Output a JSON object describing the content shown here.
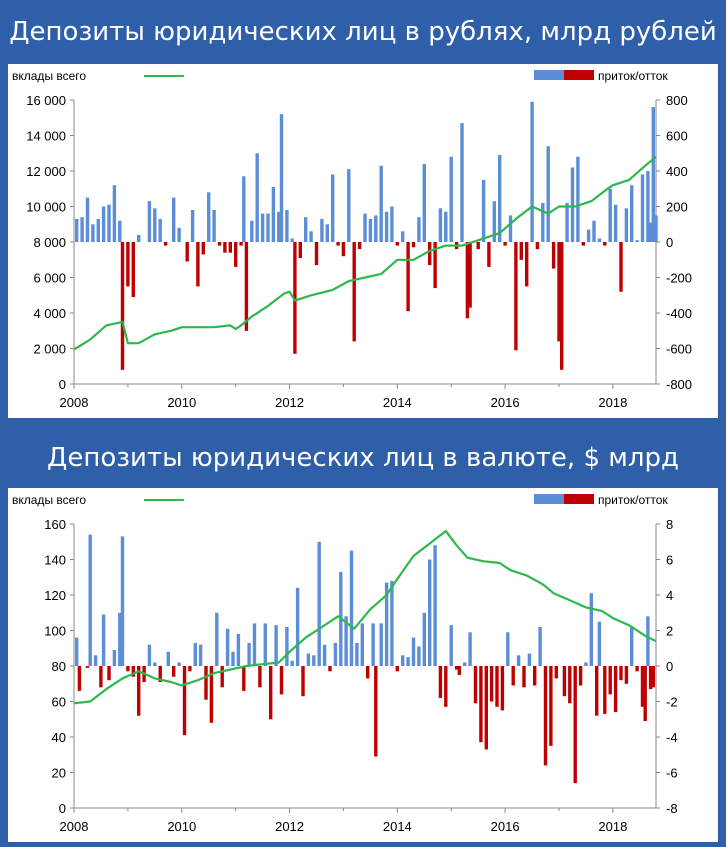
{
  "chart_data": [
    {
      "type": "bar+line",
      "title": "Депозиты юридических лиц в рублях, млрд рублей",
      "legend_left": "вклады всего",
      "legend_right": "приток/отток",
      "x_range": [
        2008,
        2018.8
      ],
      "x_ticks": [
        "2008",
        "2010",
        "2012",
        "2014",
        "2016",
        "2018"
      ],
      "y_left": {
        "min": 0,
        "max": 16000,
        "ticks": [
          "0",
          "2 000",
          "4 000",
          "6 000",
          "8 000",
          "10 000",
          "12 000",
          "14 000",
          "16 000"
        ]
      },
      "y_right": {
        "min": -800,
        "max": 800,
        "ticks": [
          "-800",
          "-600",
          "-400",
          "-200",
          "0",
          "200",
          "400",
          "600",
          "800"
        ]
      },
      "line_color": "#2DB84B",
      "pos_color": "#5B8ED6",
      "neg_color": "#C00000",
      "line_series": {
        "name": "вклады всего",
        "x": [
          2008.0,
          2008.3,
          2008.6,
          2008.9,
          2009.0,
          2009.2,
          2009.5,
          2009.8,
          2010.0,
          2010.3,
          2010.6,
          2010.9,
          2011.0,
          2011.1,
          2011.3,
          2011.6,
          2011.9,
          2012.0,
          2012.1,
          2012.4,
          2012.8,
          2013.1,
          2013.4,
          2013.7,
          2014.0,
          2014.3,
          2014.6,
          2014.9,
          2015.2,
          2015.6,
          2015.9,
          2016.2,
          2016.5,
          2016.8,
          2017.0,
          2017.3,
          2017.6,
          2017.9,
          2018.0,
          2018.3,
          2018.6,
          2018.8
        ],
        "values": [
          1950,
          2500,
          3300,
          3500,
          2300,
          2300,
          2800,
          3000,
          3200,
          3200,
          3200,
          3300,
          3100,
          3300,
          3800,
          4400,
          5100,
          5200,
          4700,
          5000,
          5300,
          5800,
          6000,
          6200,
          7000,
          7000,
          7500,
          7800,
          7800,
          8200,
          8500,
          9300,
          10000,
          9600,
          10000,
          10000,
          10300,
          11000,
          11200,
          11500,
          12300,
          12800
        ]
      },
      "bars": [
        {
          "x": 2008.05,
          "v": 130
        },
        {
          "x": 2008.15,
          "v": 140
        },
        {
          "x": 2008.25,
          "v": 250
        },
        {
          "x": 2008.35,
          "v": 100
        },
        {
          "x": 2008.45,
          "v": 130
        },
        {
          "x": 2008.55,
          "v": 200
        },
        {
          "x": 2008.65,
          "v": 210
        },
        {
          "x": 2008.75,
          "v": 320
        },
        {
          "x": 2008.85,
          "v": 120
        },
        {
          "x": 2008.9,
          "v": -720
        },
        {
          "x": 2009.0,
          "v": -250
        },
        {
          "x": 2009.1,
          "v": -310
        },
        {
          "x": 2009.2,
          "v": 40
        },
        {
          "x": 2009.4,
          "v": 230
        },
        {
          "x": 2009.5,
          "v": 190
        },
        {
          "x": 2009.6,
          "v": 130
        },
        {
          "x": 2009.7,
          "v": -20
        },
        {
          "x": 2009.85,
          "v": 250
        },
        {
          "x": 2009.95,
          "v": 80
        },
        {
          "x": 2010.1,
          "v": -110
        },
        {
          "x": 2010.2,
          "v": 180
        },
        {
          "x": 2010.3,
          "v": -250
        },
        {
          "x": 2010.4,
          "v": -70
        },
        {
          "x": 2010.5,
          "v": 280
        },
        {
          "x": 2010.6,
          "v": 180
        },
        {
          "x": 2010.7,
          "v": -20
        },
        {
          "x": 2010.8,
          "v": -60
        },
        {
          "x": 2010.9,
          "v": -60
        },
        {
          "x": 2011.0,
          "v": -140
        },
        {
          "x": 2011.1,
          "v": -20
        },
        {
          "x": 2011.15,
          "v": 370
        },
        {
          "x": 2011.2,
          "v": -500
        },
        {
          "x": 2011.3,
          "v": 120
        },
        {
          "x": 2011.4,
          "v": 500
        },
        {
          "x": 2011.5,
          "v": 160
        },
        {
          "x": 2011.6,
          "v": 160
        },
        {
          "x": 2011.7,
          "v": 310
        },
        {
          "x": 2011.8,
          "v": 170
        },
        {
          "x": 2011.85,
          "v": 720
        },
        {
          "x": 2011.95,
          "v": 180
        },
        {
          "x": 2012.05,
          "v": 20
        },
        {
          "x": 2012.1,
          "v": -630
        },
        {
          "x": 2012.2,
          "v": -90
        },
        {
          "x": 2012.3,
          "v": 140
        },
        {
          "x": 2012.4,
          "v": 60
        },
        {
          "x": 2012.5,
          "v": -130
        },
        {
          "x": 2012.6,
          "v": 130
        },
        {
          "x": 2012.7,
          "v": 100
        },
        {
          "x": 2012.8,
          "v": 380
        },
        {
          "x": 2012.9,
          "v": -20
        },
        {
          "x": 2013.0,
          "v": -80
        },
        {
          "x": 2013.1,
          "v": 410
        },
        {
          "x": 2013.2,
          "v": -560
        },
        {
          "x": 2013.3,
          "v": -40
        },
        {
          "x": 2013.4,
          "v": 160
        },
        {
          "x": 2013.5,
          "v": 130
        },
        {
          "x": 2013.6,
          "v": 150
        },
        {
          "x": 2013.7,
          "v": 430
        },
        {
          "x": 2013.8,
          "v": 170
        },
        {
          "x": 2013.9,
          "v": 200
        },
        {
          "x": 2014.0,
          "v": -20
        },
        {
          "x": 2014.1,
          "v": 60
        },
        {
          "x": 2014.2,
          "v": -390
        },
        {
          "x": 2014.3,
          "v": -30
        },
        {
          "x": 2014.4,
          "v": 140
        },
        {
          "x": 2014.5,
          "v": 440
        },
        {
          "x": 2014.6,
          "v": -130
        },
        {
          "x": 2014.7,
          "v": -260
        },
        {
          "x": 2014.8,
          "v": 190
        },
        {
          "x": 2014.9,
          "v": 170
        },
        {
          "x": 2015.0,
          "v": 480
        },
        {
          "x": 2015.1,
          "v": -40
        },
        {
          "x": 2015.2,
          "v": 670
        },
        {
          "x": 2015.3,
          "v": -430
        },
        {
          "x": 2015.35,
          "v": -370
        },
        {
          "x": 2015.5,
          "v": -40
        },
        {
          "x": 2015.6,
          "v": 350
        },
        {
          "x": 2015.7,
          "v": -140
        },
        {
          "x": 2015.8,
          "v": 230
        },
        {
          "x": 2015.9,
          "v": 490
        },
        {
          "x": 2016.0,
          "v": -20
        },
        {
          "x": 2016.1,
          "v": 150
        },
        {
          "x": 2016.2,
          "v": -610
        },
        {
          "x": 2016.3,
          "v": -100
        },
        {
          "x": 2016.4,
          "v": -250
        },
        {
          "x": 2016.5,
          "v": 790
        },
        {
          "x": 2016.6,
          "v": -40
        },
        {
          "x": 2016.7,
          "v": 220
        },
        {
          "x": 2016.8,
          "v": 540
        },
        {
          "x": 2016.9,
          "v": -150
        },
        {
          "x": 2017.0,
          "v": -560
        },
        {
          "x": 2017.05,
          "v": -720
        },
        {
          "x": 2017.15,
          "v": 220
        },
        {
          "x": 2017.25,
          "v": 420
        },
        {
          "x": 2017.35,
          "v": 480
        },
        {
          "x": 2017.45,
          "v": -20
        },
        {
          "x": 2017.55,
          "v": 70
        },
        {
          "x": 2017.65,
          "v": 120
        },
        {
          "x": 2017.75,
          "v": 20
        },
        {
          "x": 2017.85,
          "v": -20
        },
        {
          "x": 2017.95,
          "v": 300
        },
        {
          "x": 2018.05,
          "v": 210
        },
        {
          "x": 2018.15,
          "v": -280
        },
        {
          "x": 2018.25,
          "v": 190
        },
        {
          "x": 2018.35,
          "v": 320
        },
        {
          "x": 2018.45,
          "v": 10
        },
        {
          "x": 2018.55,
          "v": 380
        },
        {
          "x": 2018.65,
          "v": 400
        },
        {
          "x": 2018.7,
          "v": 110
        },
        {
          "x": 2018.75,
          "v": 760
        },
        {
          "x": 2018.8,
          "v": 150
        }
      ]
    },
    {
      "type": "bar+line",
      "title": "Депозиты юридических лиц в валюте, $ млрд",
      "legend_left": "вклады всего",
      "legend_right": "приток/отток",
      "x_range": [
        2008,
        2018.8
      ],
      "x_ticks": [
        "2008",
        "2010",
        "2012",
        "2014",
        "2016",
        "2018"
      ],
      "y_left": {
        "min": 0,
        "max": 160,
        "ticks": [
          "0",
          "20",
          "40",
          "60",
          "80",
          "100",
          "120",
          "140",
          "160"
        ]
      },
      "y_right": {
        "min": -8,
        "max": 8,
        "ticks": [
          "-8",
          "-6",
          "-4",
          "-2",
          "0",
          "2",
          "4",
          "6",
          "8"
        ]
      },
      "line_color": "#2DB84B",
      "pos_color": "#5B8ED6",
      "neg_color": "#C00000",
      "line_series": {
        "name": "вклады всего",
        "x": [
          2008.0,
          2008.3,
          2008.6,
          2008.9,
          2009.2,
          2009.5,
          2009.8,
          2010.0,
          2010.3,
          2010.6,
          2010.9,
          2011.2,
          2011.5,
          2011.8,
          2012.0,
          2012.3,
          2012.6,
          2012.9,
          2013.2,
          2013.5,
          2013.8,
          2014.0,
          2014.3,
          2014.6,
          2014.9,
          2015.1,
          2015.3,
          2015.6,
          2015.9,
          2016.1,
          2016.4,
          2016.7,
          2016.9,
          2017.2,
          2017.5,
          2017.8,
          2018.0,
          2018.3,
          2018.6,
          2018.8
        ],
        "values": [
          59,
          60,
          67,
          73,
          77,
          73,
          71,
          69,
          72,
          76,
          78,
          80,
          81,
          82,
          88,
          96,
          102,
          108,
          101,
          112,
          120,
          129,
          142,
          149,
          156,
          148,
          141,
          139,
          138,
          134,
          131,
          126,
          121,
          117,
          113,
          111,
          107,
          103,
          97,
          94
        ]
      },
      "bars": [
        {
          "x": 2008.05,
          "v": 1.6
        },
        {
          "x": 2008.1,
          "v": -1.4
        },
        {
          "x": 2008.25,
          "v": -0.1
        },
        {
          "x": 2008.3,
          "v": 7.4
        },
        {
          "x": 2008.4,
          "v": 0.6
        },
        {
          "x": 2008.5,
          "v": -1.2
        },
        {
          "x": 2008.55,
          "v": 2.9
        },
        {
          "x": 2008.65,
          "v": -0.8
        },
        {
          "x": 2008.75,
          "v": 0.9
        },
        {
          "x": 2008.85,
          "v": 3.0
        },
        {
          "x": 2008.9,
          "v": 7.3
        },
        {
          "x": 2009.0,
          "v": -0.3
        },
        {
          "x": 2009.1,
          "v": -0.6
        },
        {
          "x": 2009.2,
          "v": -2.8
        },
        {
          "x": 2009.3,
          "v": -0.9
        },
        {
          "x": 2009.4,
          "v": 1.2
        },
        {
          "x": 2009.5,
          "v": 0.2
        },
        {
          "x": 2009.6,
          "v": -0.9
        },
        {
          "x": 2009.75,
          "v": 0.8
        },
        {
          "x": 2009.85,
          "v": -0.6
        },
        {
          "x": 2009.95,
          "v": 0.2
        },
        {
          "x": 2010.05,
          "v": -3.9
        },
        {
          "x": 2010.15,
          "v": -0.3
        },
        {
          "x": 2010.25,
          "v": 1.3
        },
        {
          "x": 2010.35,
          "v": 1.2
        },
        {
          "x": 2010.45,
          "v": -1.9
        },
        {
          "x": 2010.55,
          "v": -3.2
        },
        {
          "x": 2010.65,
          "v": 3.0
        },
        {
          "x": 2010.75,
          "v": -1.2
        },
        {
          "x": 2010.85,
          "v": 2.1
        },
        {
          "x": 2010.95,
          "v": 0.8
        },
        {
          "x": 2011.05,
          "v": 1.8
        },
        {
          "x": 2011.15,
          "v": -1.4
        },
        {
          "x": 2011.25,
          "v": 1.3
        },
        {
          "x": 2011.35,
          "v": 2.4
        },
        {
          "x": 2011.45,
          "v": -1.2
        },
        {
          "x": 2011.55,
          "v": 2.4
        },
        {
          "x": 2011.65,
          "v": -3.0
        },
        {
          "x": 2011.75,
          "v": 2.3
        },
        {
          "x": 2011.85,
          "v": -1.6
        },
        {
          "x": 2011.95,
          "v": 2.2
        },
        {
          "x": 2012.05,
          "v": 0.3
        },
        {
          "x": 2012.15,
          "v": 4.4
        },
        {
          "x": 2012.25,
          "v": -1.7
        },
        {
          "x": 2012.35,
          "v": 0.7
        },
        {
          "x": 2012.45,
          "v": 0.6
        },
        {
          "x": 2012.55,
          "v": 7.0
        },
        {
          "x": 2012.65,
          "v": 1.2
        },
        {
          "x": 2012.75,
          "v": -0.3
        },
        {
          "x": 2012.85,
          "v": 1.3
        },
        {
          "x": 2012.95,
          "v": 5.3
        },
        {
          "x": 2013.05,
          "v": 2.8
        },
        {
          "x": 2013.15,
          "v": 6.5
        },
        {
          "x": 2013.25,
          "v": 1.3
        },
        {
          "x": 2013.35,
          "v": 2.4
        },
        {
          "x": 2013.45,
          "v": -0.7
        },
        {
          "x": 2013.55,
          "v": 2.4
        },
        {
          "x": 2013.6,
          "v": -5.1
        },
        {
          "x": 2013.7,
          "v": 2.4
        },
        {
          "x": 2013.8,
          "v": 4.7
        },
        {
          "x": 2013.9,
          "v": 4.8
        },
        {
          "x": 2014.0,
          "v": -0.3
        },
        {
          "x": 2014.1,
          "v": 0.6
        },
        {
          "x": 2014.2,
          "v": 0.5
        },
        {
          "x": 2014.3,
          "v": 1.6
        },
        {
          "x": 2014.4,
          "v": 1.1
        },
        {
          "x": 2014.5,
          "v": 3.0
        },
        {
          "x": 2014.6,
          "v": 6.0
        },
        {
          "x": 2014.7,
          "v": 6.8
        },
        {
          "x": 2014.8,
          "v": -1.8
        },
        {
          "x": 2014.9,
          "v": -2.3
        },
        {
          "x": 2015.0,
          "v": 2.3
        },
        {
          "x": 2015.1,
          "v": -0.2
        },
        {
          "x": 2015.15,
          "v": -0.5
        },
        {
          "x": 2015.25,
          "v": 0.2
        },
        {
          "x": 2015.35,
          "v": 1.9
        },
        {
          "x": 2015.45,
          "v": -2.1
        },
        {
          "x": 2015.55,
          "v": -4.3
        },
        {
          "x": 2015.65,
          "v": -4.7
        },
        {
          "x": 2015.75,
          "v": -2.0
        },
        {
          "x": 2015.85,
          "v": -2.3
        },
        {
          "x": 2015.95,
          "v": -2.5
        },
        {
          "x": 2016.05,
          "v": 1.9
        },
        {
          "x": 2016.15,
          "v": -1.1
        },
        {
          "x": 2016.25,
          "v": 0.6
        },
        {
          "x": 2016.35,
          "v": -1.2
        },
        {
          "x": 2016.45,
          "v": 0.7
        },
        {
          "x": 2016.55,
          "v": -1.1
        },
        {
          "x": 2016.65,
          "v": 2.2
        },
        {
          "x": 2016.75,
          "v": -5.6
        },
        {
          "x": 2016.85,
          "v": -4.5
        },
        {
          "x": 2016.95,
          "v": -0.7
        },
        {
          "x": 2017.1,
          "v": -1.7
        },
        {
          "x": 2017.2,
          "v": -2.1
        },
        {
          "x": 2017.3,
          "v": -6.6
        },
        {
          "x": 2017.4,
          "v": -1.1
        },
        {
          "x": 2017.5,
          "v": 0.2
        },
        {
          "x": 2017.6,
          "v": 4.1
        },
        {
          "x": 2017.7,
          "v": -2.8
        },
        {
          "x": 2017.75,
          "v": 2.5
        },
        {
          "x": 2017.85,
          "v": -2.7
        },
        {
          "x": 2017.95,
          "v": -1.6
        },
        {
          "x": 2018.05,
          "v": -2.6
        },
        {
          "x": 2018.15,
          "v": -0.8
        },
        {
          "x": 2018.25,
          "v": -1.0
        },
        {
          "x": 2018.35,
          "v": 2.2
        },
        {
          "x": 2018.45,
          "v": -0.3
        },
        {
          "x": 2018.55,
          "v": -2.3
        },
        {
          "x": 2018.6,
          "v": -3.1
        },
        {
          "x": 2018.65,
          "v": 2.8
        },
        {
          "x": 2018.7,
          "v": -1.3
        },
        {
          "x": 2018.75,
          "v": -1.2
        }
      ]
    }
  ]
}
